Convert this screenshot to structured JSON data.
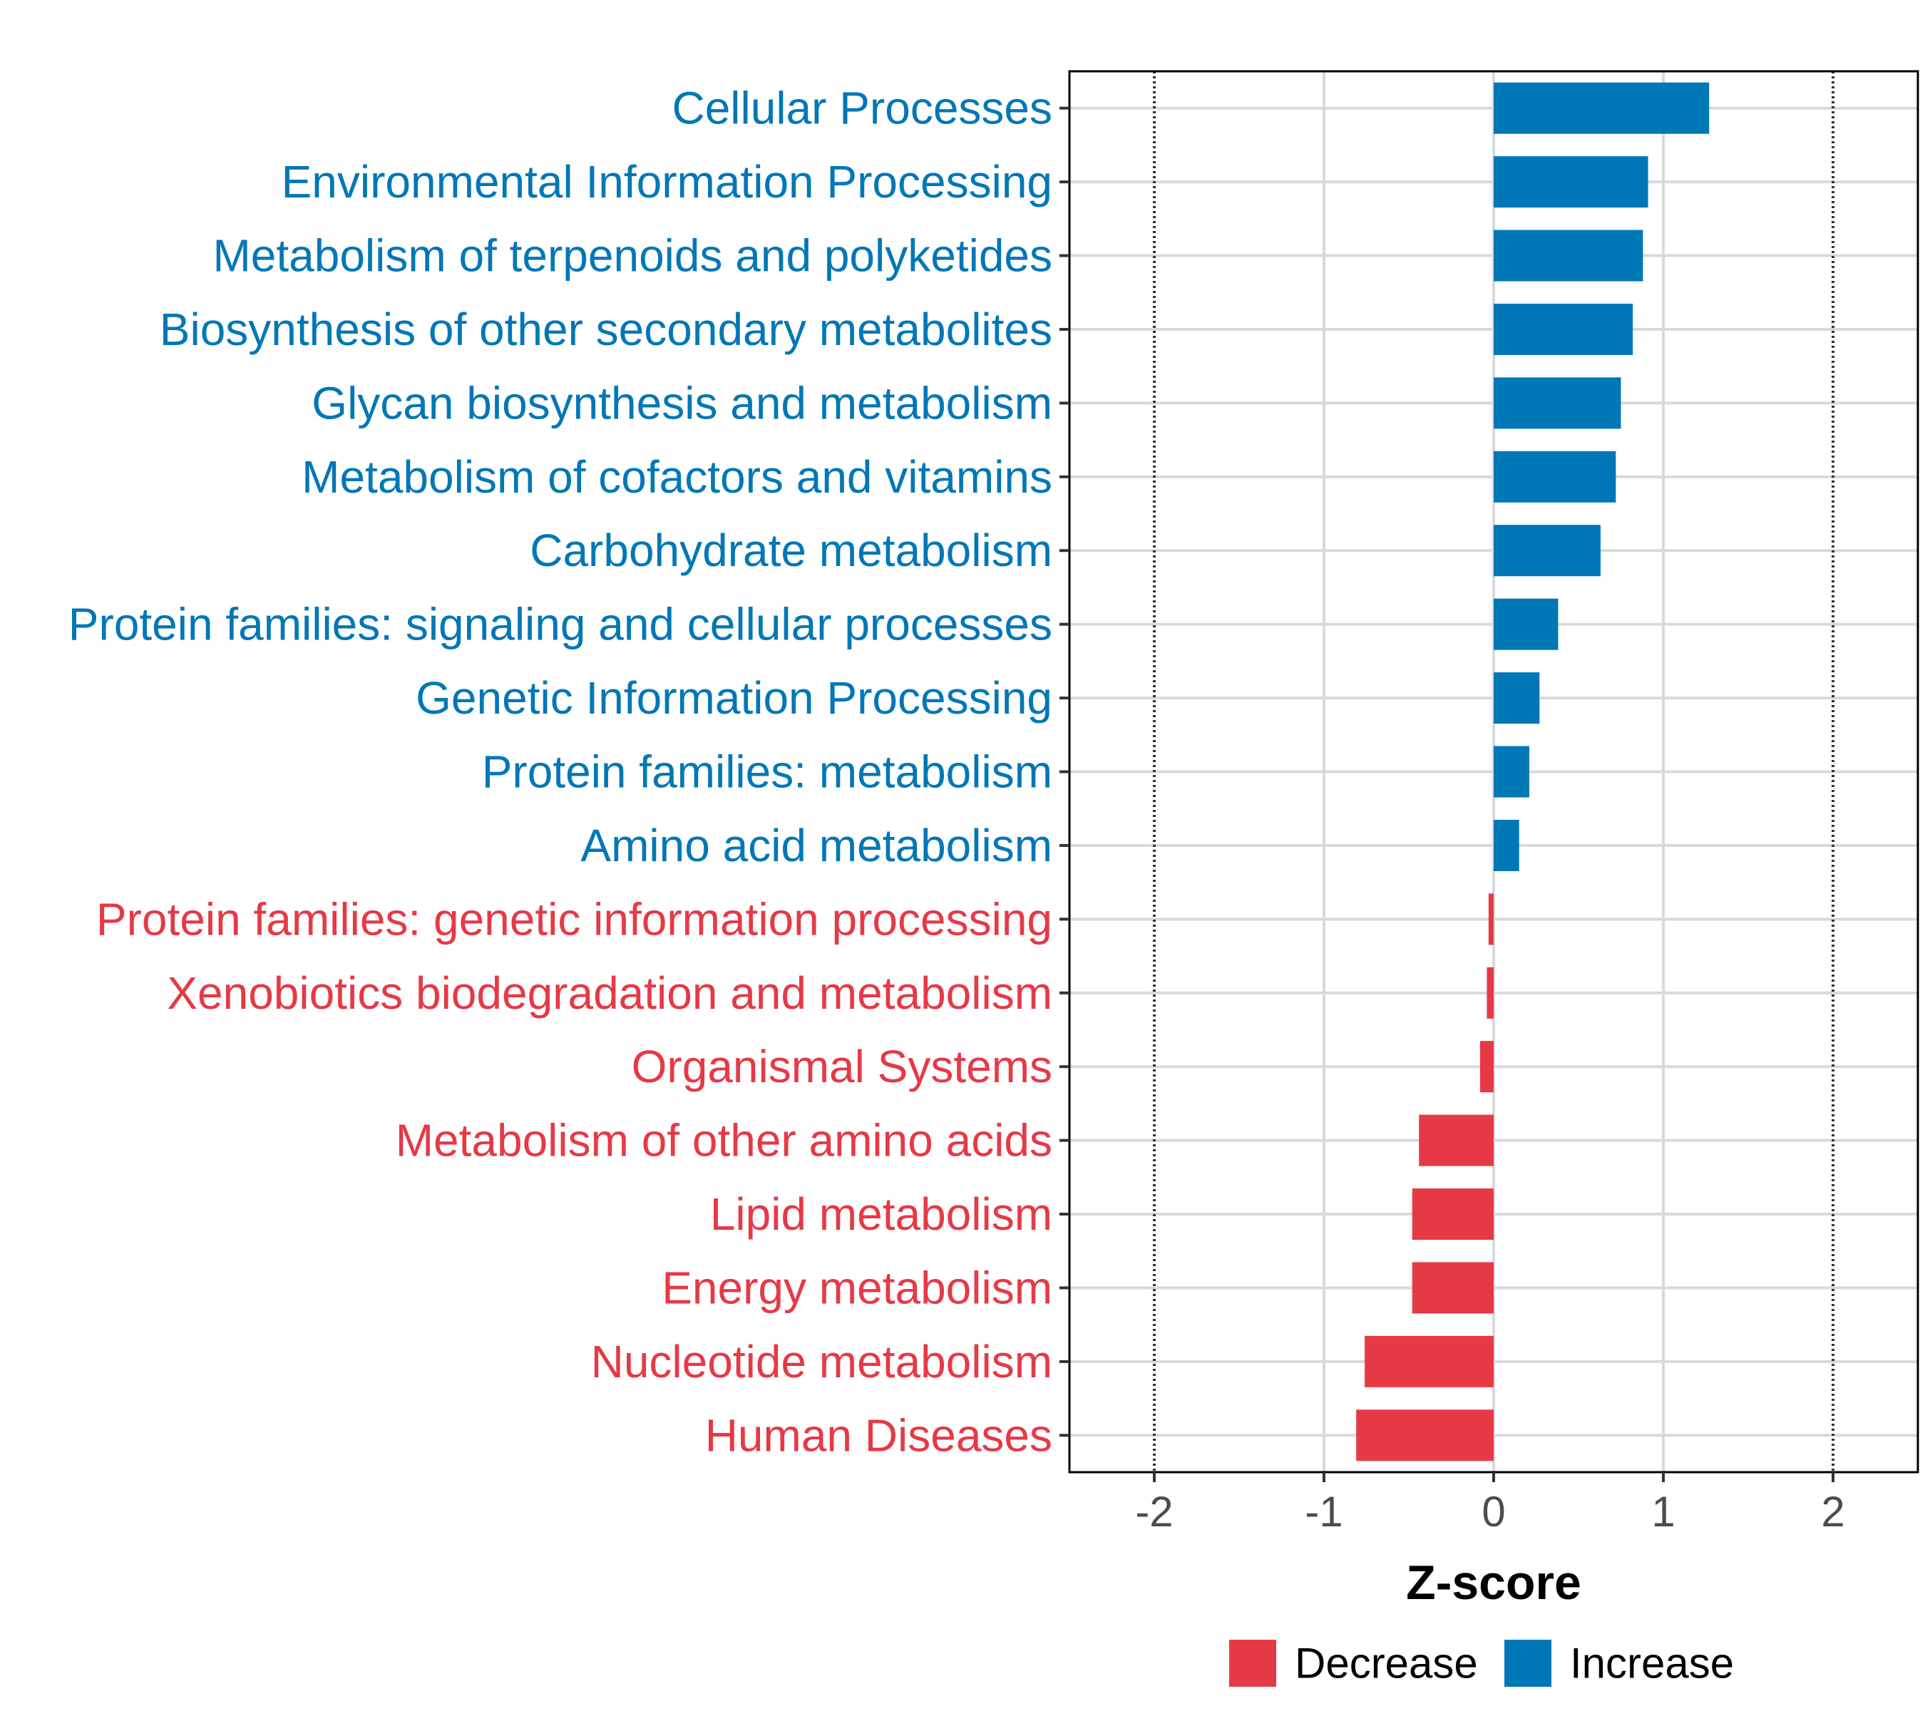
{
  "colors": {
    "increase": "#0077b6",
    "decrease": "#e63946",
    "grid": "#d9d9d9",
    "refline": "#333333",
    "axis": "#000000"
  },
  "chart_data": {
    "type": "bar",
    "orientation": "horizontal",
    "xlabel": "Z-score",
    "xlim": [
      -2.5,
      2.5
    ],
    "xticks": [
      -2,
      -1,
      0,
      1,
      2
    ],
    "reference_lines": [
      -2,
      2
    ],
    "grid": true,
    "categories": [
      "Cellular Processes",
      "Environmental Information Processing",
      "Metabolism of terpenoids and polyketides",
      "Biosynthesis of other secondary metabolites",
      "Glycan biosynthesis and metabolism",
      "Metabolism of cofactors and vitamins",
      "Carbohydrate metabolism",
      "Protein families: signaling and cellular processes",
      "Genetic Information Processing",
      "Protein families: metabolism",
      "Amino acid metabolism",
      "Protein families: genetic information processing",
      "Xenobiotics biodegradation and metabolism",
      "Organismal Systems",
      "Metabolism of other amino acids",
      "Lipid metabolism",
      "Energy metabolism",
      "Nucleotide metabolism",
      "Human Diseases"
    ],
    "values": [
      1.27,
      0.91,
      0.88,
      0.82,
      0.75,
      0.72,
      0.63,
      0.38,
      0.27,
      0.21,
      0.15,
      -0.03,
      -0.04,
      -0.08,
      -0.44,
      -0.48,
      -0.48,
      -0.76,
      -0.81
    ],
    "legend": {
      "position": "bottom",
      "entries": [
        {
          "label": "Decrease",
          "key": "decrease"
        },
        {
          "label": "Increase",
          "key": "increase"
        }
      ]
    }
  }
}
